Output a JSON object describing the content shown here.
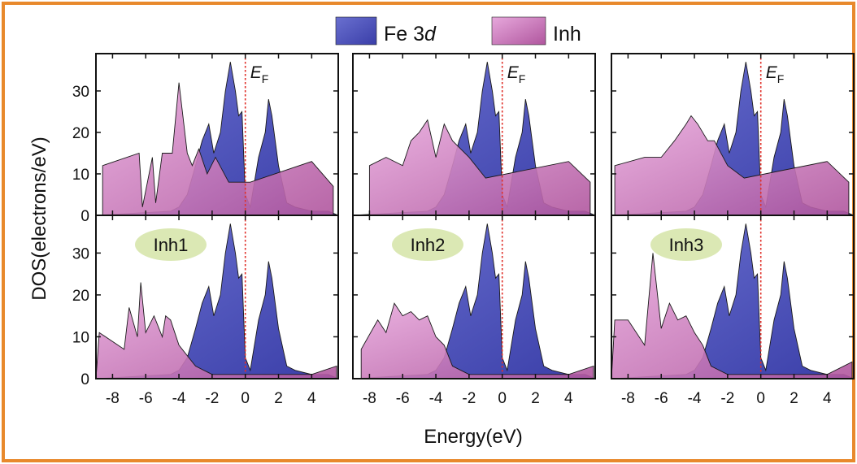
{
  "figure": {
    "frame_color": "#e8892c",
    "ylabel": "DOS(electrons/eV)",
    "xlabel": "Energy(eV)",
    "fermi_label_main": "E",
    "fermi_label_sub": "F",
    "legend": [
      {
        "label_main": "Fe 3",
        "label_italic": "d",
        "color": "#3a3ea8",
        "color_light": "#6a70d0"
      },
      {
        "label_main": "Inh",
        "label_italic": "",
        "color": "#b0569e",
        "color_light": "#e7a8dc"
      }
    ],
    "badge_color": "#dbe8b4"
  },
  "chart_data": [
    {
      "type": "area",
      "panel": "top",
      "column": 1,
      "xlim": [
        -9,
        5.6
      ],
      "ylim": [
        0,
        39
      ],
      "xticks": [
        -8,
        -6,
        -4,
        -2,
        0,
        2,
        4
      ],
      "yticks": [
        0,
        10,
        20,
        30
      ],
      "fermi_level": 0,
      "series": [
        {
          "name": "Fe 3d",
          "x": [
            -9,
            -4.5,
            -4,
            -3.5,
            -3,
            -2.6,
            -2.2,
            -1.9,
            -1.5,
            -1.2,
            -0.9,
            -0.6,
            -0.4,
            -0.2,
            0,
            0.3,
            0.8,
            1.2,
            1.4,
            1.6,
            2,
            2.5,
            3,
            4,
            5,
            5.6
          ],
          "y": [
            0,
            1,
            2,
            5,
            12,
            18,
            22,
            15,
            20,
            30,
            37,
            30,
            24,
            25,
            5,
            2,
            14,
            20,
            28,
            24,
            12,
            3,
            2,
            1,
            1,
            0
          ]
        },
        {
          "name": "Inh",
          "x": [
            -8.6,
            -6.4,
            -6.2,
            -5.6,
            -5.4,
            -5,
            -4.8,
            -4.4,
            -4,
            -3.5,
            -3.2,
            -2.8,
            -2.3,
            -1.8,
            -1,
            0.3,
            4,
            5.3
          ],
          "y": [
            12,
            15,
            2,
            14,
            3,
            15,
            15,
            15,
            32,
            15,
            12,
            16,
            10,
            14,
            8,
            8,
            13,
            7
          ]
        }
      ]
    },
    {
      "type": "area",
      "panel": "top",
      "column": 2,
      "xlim": [
        -9,
        5.6
      ],
      "ylim": [
        0,
        39
      ],
      "xticks": [
        -8,
        -6,
        -4,
        -2,
        0,
        2,
        4
      ],
      "yticks": [
        0,
        10,
        20,
        30
      ],
      "fermi_level": 0,
      "series": [
        {
          "name": "Fe 3d",
          "x": [
            -9,
            -4.5,
            -4,
            -3.5,
            -3,
            -2.6,
            -2.2,
            -1.9,
            -1.5,
            -1.2,
            -0.9,
            -0.6,
            -0.4,
            -0.2,
            0,
            0.3,
            0.8,
            1.2,
            1.4,
            1.6,
            2,
            2.5,
            3,
            4,
            5,
            5.6
          ],
          "y": [
            0,
            1,
            2,
            5,
            12,
            18,
            22,
            15,
            20,
            30,
            37,
            30,
            24,
            25,
            5,
            2,
            14,
            20,
            28,
            24,
            12,
            3,
            2,
            1,
            1,
            0
          ]
        },
        {
          "name": "Inh",
          "x": [
            -8,
            -7,
            -6,
            -5.5,
            -5,
            -4.5,
            -4,
            -3.5,
            -3,
            -2,
            -1,
            4,
            5.3
          ],
          "y": [
            12,
            14,
            12,
            18,
            20,
            23,
            14,
            22,
            18,
            14,
            9,
            13,
            8
          ]
        }
      ]
    },
    {
      "type": "area",
      "panel": "top",
      "column": 3,
      "xlim": [
        -9,
        5.6
      ],
      "ylim": [
        0,
        39
      ],
      "xticks": [
        -8,
        -6,
        -4,
        -2,
        0,
        2,
        4
      ],
      "yticks": [
        0,
        10,
        20,
        30
      ],
      "fermi_level": 0,
      "series": [
        {
          "name": "Fe 3d",
          "x": [
            -9,
            -4.5,
            -4,
            -3.5,
            -3,
            -2.6,
            -2.2,
            -1.9,
            -1.5,
            -1.2,
            -0.9,
            -0.6,
            -0.4,
            -0.2,
            0,
            0.3,
            0.8,
            1.2,
            1.4,
            1.6,
            2,
            2.5,
            3,
            4,
            5,
            5.6
          ],
          "y": [
            0,
            1,
            2,
            5,
            12,
            18,
            22,
            15,
            20,
            30,
            37,
            30,
            24,
            25,
            5,
            2,
            14,
            20,
            28,
            24,
            12,
            3,
            2,
            1,
            1,
            0
          ]
        },
        {
          "name": "Inh",
          "x": [
            -8.8,
            -7,
            -6,
            -5.2,
            -4.5,
            -4.2,
            -3.8,
            -3.2,
            -2.8,
            -2,
            -1,
            4,
            5.3
          ],
          "y": [
            12,
            14,
            14,
            18,
            22,
            24,
            22,
            18,
            18,
            12,
            9,
            13,
            8
          ]
        }
      ]
    },
    {
      "type": "area",
      "panel": "bottom",
      "column": 1,
      "annotation": "Inh1",
      "xlim": [
        -9,
        5.6
      ],
      "ylim": [
        0,
        39
      ],
      "xticks": [
        -8,
        -6,
        -4,
        -2,
        0,
        2,
        4
      ],
      "yticks": [
        0,
        10,
        20,
        30
      ],
      "fermi_level": 0,
      "series": [
        {
          "name": "Fe 3d",
          "x": [
            -9,
            -4.5,
            -4,
            -3.5,
            -3,
            -2.6,
            -2.2,
            -1.9,
            -1.5,
            -1.2,
            -0.9,
            -0.6,
            -0.4,
            -0.2,
            0,
            0.3,
            0.8,
            1.2,
            1.4,
            1.6,
            2,
            2.5,
            3,
            4,
            5,
            5.6
          ],
          "y": [
            0,
            1,
            2,
            5,
            12,
            18,
            22,
            15,
            20,
            30,
            37,
            30,
            24,
            25,
            5,
            2,
            14,
            20,
            28,
            24,
            12,
            3,
            2,
            1,
            1,
            0
          ]
        },
        {
          "name": "Inh",
          "x": [
            -9,
            -8.8,
            -7.3,
            -7,
            -6.5,
            -6.3,
            -6,
            -5.5,
            -5,
            -4.8,
            -4.5,
            -4,
            -3,
            -2,
            0,
            2,
            4,
            5.5
          ],
          "y": [
            0,
            11,
            7,
            17,
            10,
            23,
            11,
            15,
            10,
            15,
            14,
            8,
            3,
            1,
            1,
            1,
            1,
            3
          ]
        }
      ]
    },
    {
      "type": "area",
      "panel": "bottom",
      "column": 2,
      "annotation": "Inh2",
      "xlim": [
        -9,
        5.6
      ],
      "ylim": [
        0,
        39
      ],
      "xticks": [
        -8,
        -6,
        -4,
        -2,
        0,
        2,
        4
      ],
      "yticks": [
        0,
        10,
        20,
        30
      ],
      "fermi_level": 0,
      "series": [
        {
          "name": "Fe 3d",
          "x": [
            -9,
            -4.5,
            -4,
            -3.5,
            -3,
            -2.6,
            -2.2,
            -1.9,
            -1.5,
            -1.2,
            -0.9,
            -0.6,
            -0.4,
            -0.2,
            0,
            0.3,
            0.8,
            1.2,
            1.4,
            1.6,
            2,
            2.5,
            3,
            4,
            5,
            5.6
          ],
          "y": [
            0,
            1,
            2,
            5,
            12,
            18,
            22,
            15,
            20,
            30,
            37,
            30,
            24,
            25,
            5,
            2,
            14,
            20,
            28,
            24,
            12,
            3,
            2,
            1,
            1,
            0
          ]
        },
        {
          "name": "Inh",
          "x": [
            -8.5,
            -7.5,
            -7,
            -6.5,
            -6,
            -5.5,
            -5,
            -4.5,
            -4,
            -3.5,
            -3,
            -2,
            0,
            2,
            4,
            5.5
          ],
          "y": [
            7,
            14,
            11,
            18,
            15,
            16,
            14,
            15,
            10,
            8,
            3,
            1,
            1,
            1,
            1,
            3
          ]
        }
      ]
    },
    {
      "type": "area",
      "panel": "bottom",
      "column": 3,
      "annotation": "Inh3",
      "xlim": [
        -9,
        5.6
      ],
      "ylim": [
        0,
        39
      ],
      "xticks": [
        -8,
        -6,
        -4,
        -2,
        0,
        2,
        4
      ],
      "yticks": [
        0,
        10,
        20,
        30
      ],
      "fermi_level": 0,
      "series": [
        {
          "name": "Fe 3d",
          "x": [
            -9,
            -4.5,
            -4,
            -3.5,
            -3,
            -2.6,
            -2.2,
            -1.9,
            -1.5,
            -1.2,
            -0.9,
            -0.6,
            -0.4,
            -0.2,
            0,
            0.3,
            0.8,
            1.2,
            1.4,
            1.6,
            2,
            2.5,
            3,
            4,
            5,
            5.6
          ],
          "y": [
            0,
            1,
            2,
            5,
            12,
            18,
            22,
            15,
            20,
            30,
            37,
            30,
            24,
            25,
            5,
            2,
            14,
            20,
            28,
            24,
            12,
            3,
            2,
            1,
            1,
            0
          ]
        },
        {
          "name": "Inh",
          "x": [
            -9,
            -8.8,
            -8,
            -7,
            -6.5,
            -6,
            -5.5,
            -5,
            -4.5,
            -4,
            -3.5,
            -3,
            -2,
            0,
            2,
            4,
            5.5
          ],
          "y": [
            0,
            14,
            14,
            8,
            30,
            12,
            18,
            14,
            15,
            11,
            8,
            3,
            1,
            1,
            1,
            1,
            4
          ]
        }
      ]
    }
  ]
}
